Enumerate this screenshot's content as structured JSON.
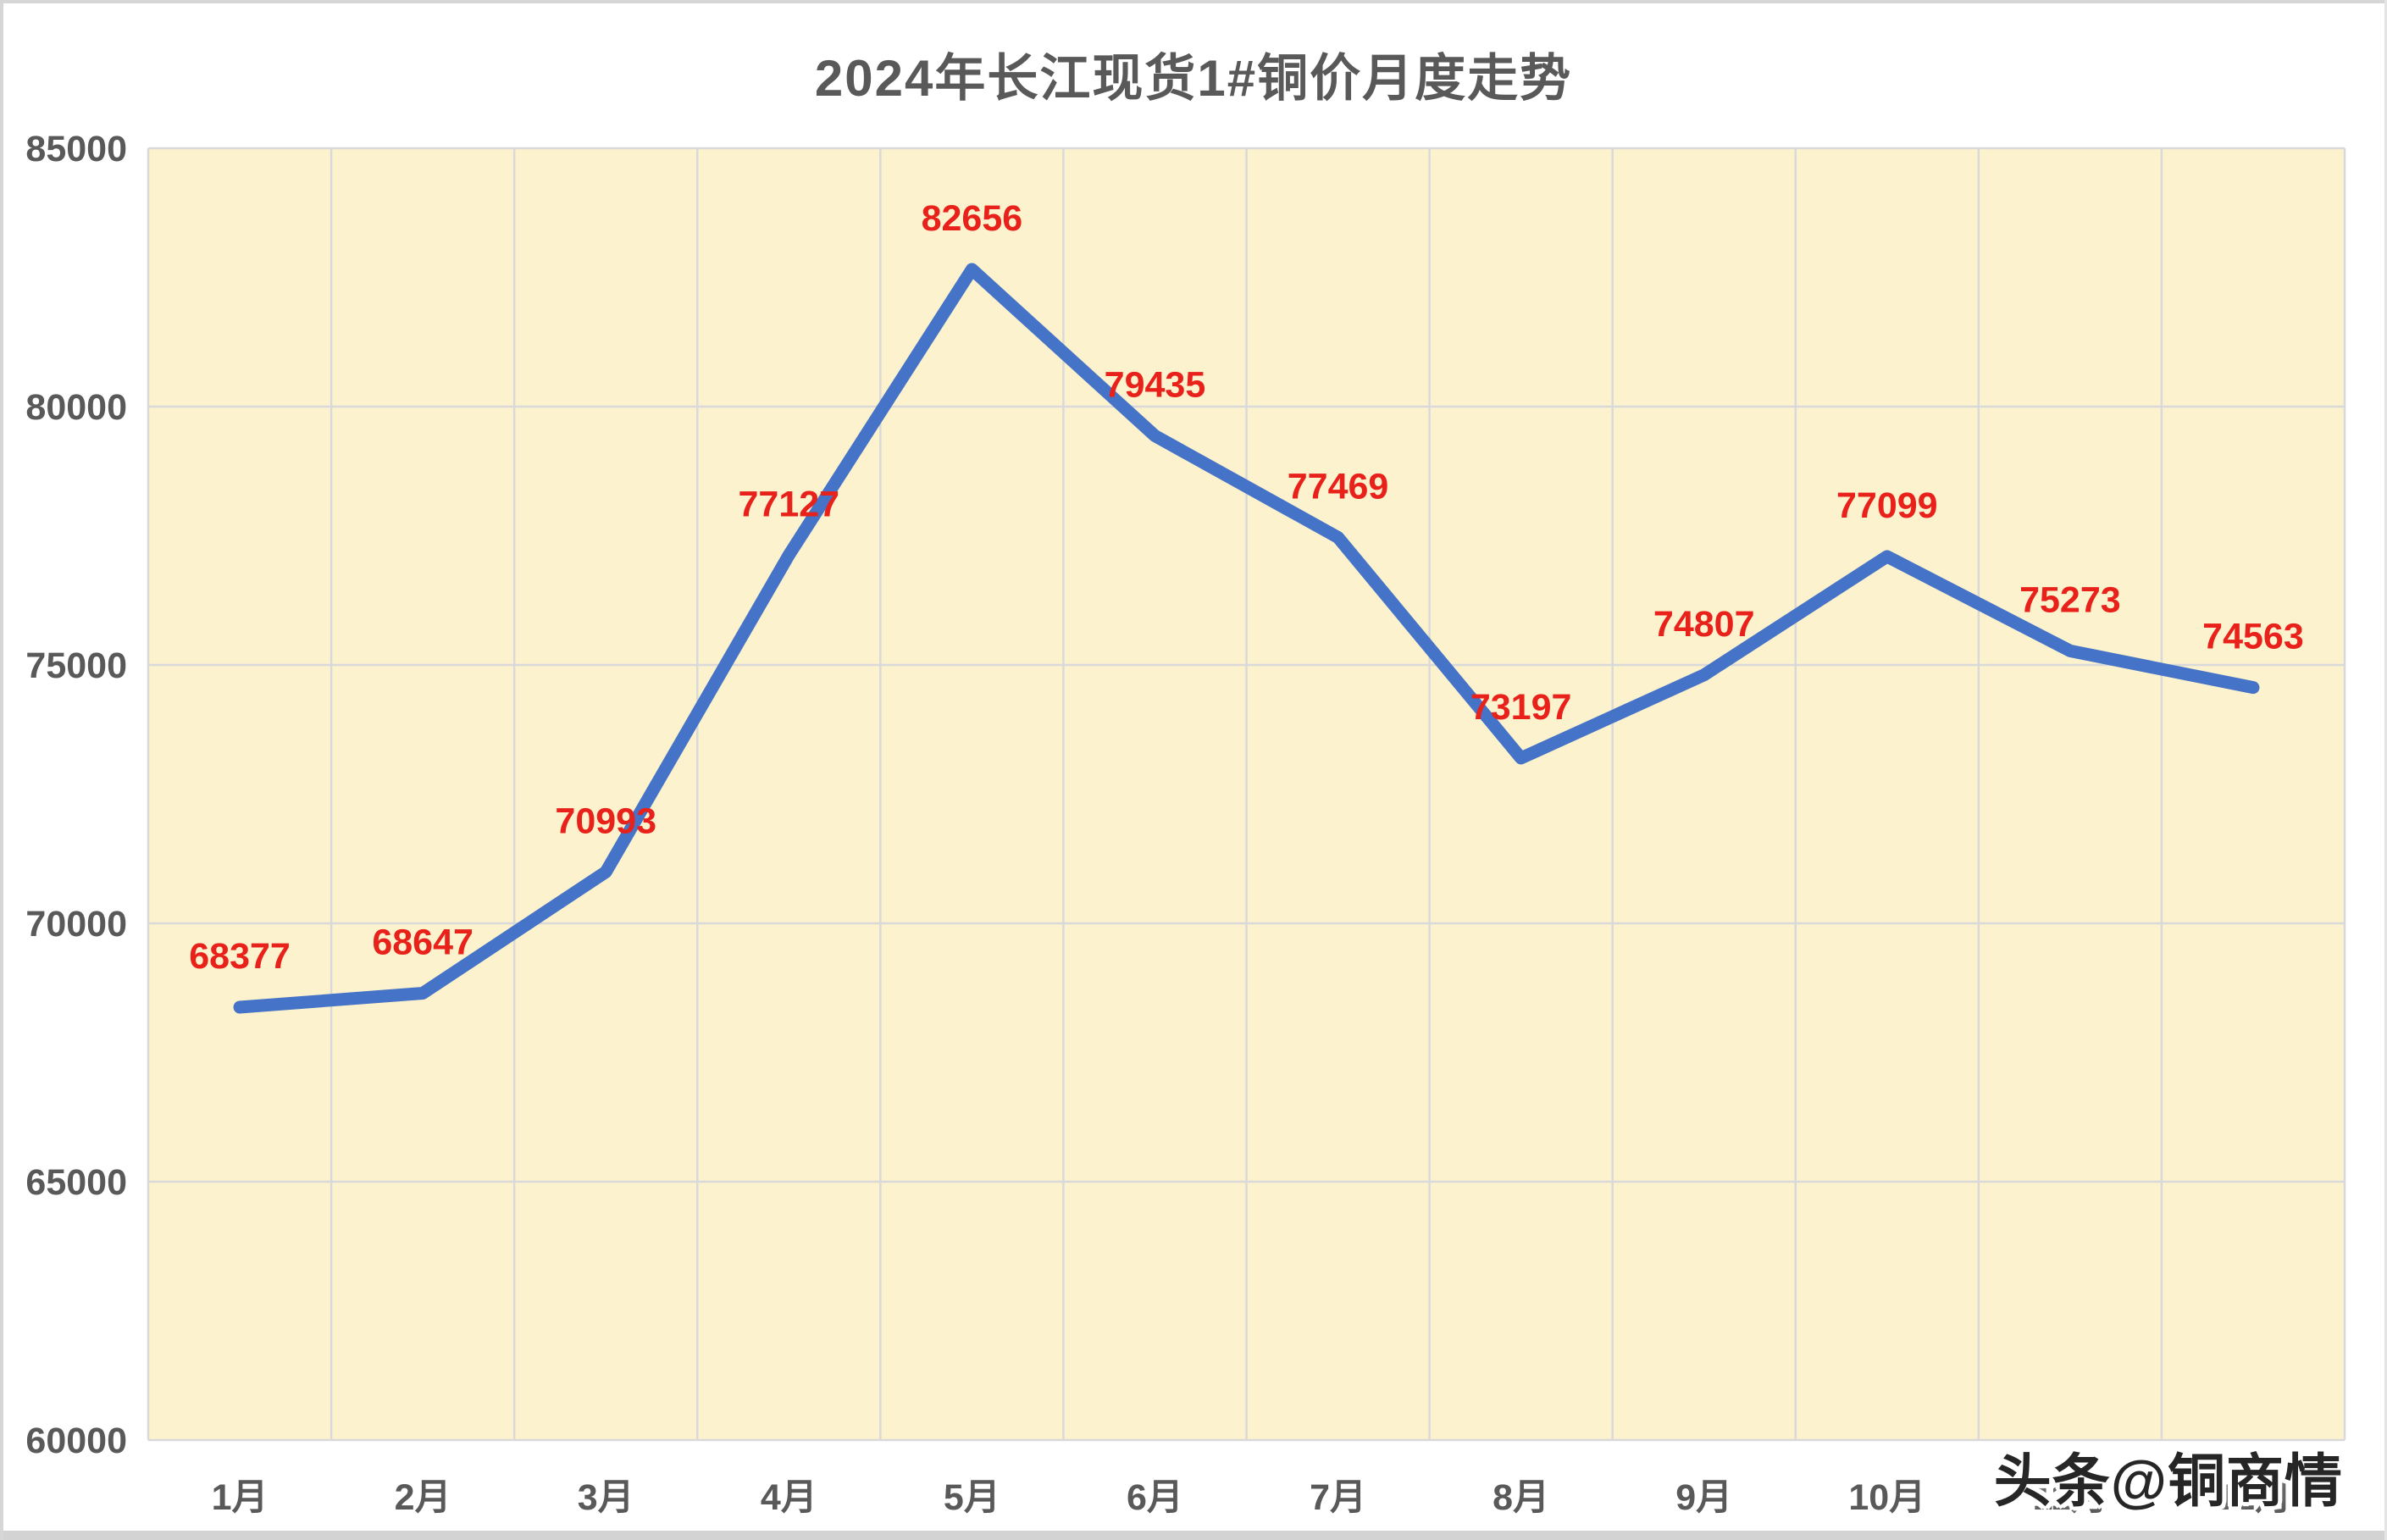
{
  "header": {
    "title": "2024年长江现货1#铜价月度走势"
  },
  "watermark": {
    "text": "头条@铜商情"
  },
  "chart_data": {
    "type": "line",
    "title": "2024年长江现货1#铜价月度走势",
    "categories": [
      "1月",
      "2月",
      "3月",
      "4月",
      "5月",
      "6月",
      "7月",
      "8月",
      "9月",
      "10月",
      "11月",
      "12月"
    ],
    "values": [
      68377,
      68647,
      70993,
      77127,
      82656,
      79435,
      77469,
      73197,
      74807,
      77099,
      75273,
      74563
    ],
    "data_labels": [
      "68377",
      "68647",
      "70993",
      "77127",
      "82656",
      "79435",
      "77469",
      "73197",
      "74807",
      "77099",
      "75273",
      "74563"
    ],
    "xlabel": "",
    "ylabel": "",
    "ylim": [
      60000,
      85000
    ],
    "yticks": [
      60000,
      65000,
      70000,
      75000,
      80000,
      85000
    ],
    "ytick_labels": [
      "60000",
      "65000",
      "70000",
      "75000",
      "80000",
      "85000"
    ],
    "grid": true,
    "legend_position": "none",
    "colors": {
      "line": "#4573C7",
      "data_label": "#E8211B",
      "plot_background": "#FDF2CE",
      "gridline": "#D9D9D9",
      "axis_text": "#595959",
      "title_text": "#595959",
      "outer_background": "#FFFFFF"
    }
  }
}
